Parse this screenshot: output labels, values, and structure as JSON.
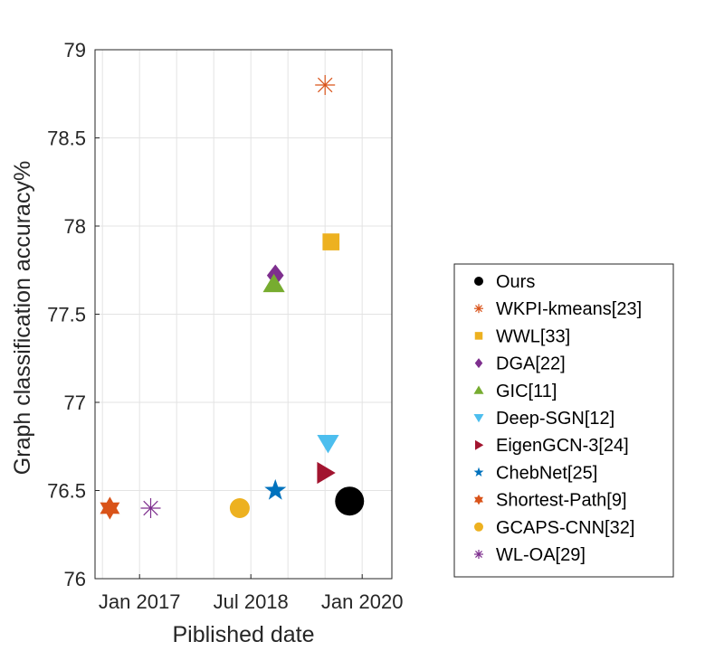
{
  "chart_data": {
    "type": "scatter",
    "title": "",
    "xlabel": "Piblished date",
    "ylabel": "Graph classification accuracy%",
    "xlim": [
      2016.4,
      2020.4
    ],
    "ylim": [
      76,
      79
    ],
    "xticks": [
      {
        "value": 2017.0,
        "label": "Jan 2017"
      },
      {
        "value": 2018.5,
        "label": "Jul 2018"
      },
      {
        "value": 2020.0,
        "label": "Jan 2020"
      }
    ],
    "yticks": [
      {
        "value": 76,
        "label": "76"
      },
      {
        "value": 76.5,
        "label": "76.5"
      },
      {
        "value": 77,
        "label": "77"
      },
      {
        "value": 77.5,
        "label": "77.5"
      },
      {
        "value": 78,
        "label": "78"
      },
      {
        "value": 78.5,
        "label": "78.5"
      },
      {
        "value": 79,
        "label": "79"
      }
    ],
    "grid": true,
    "legend_position": "right",
    "series": [
      {
        "name": "Ours",
        "marker": "circle",
        "color": "#000000",
        "x": 2019.83,
        "y": 76.44,
        "size": "large"
      },
      {
        "name": "WKPI-kmeans[23]",
        "marker": "asterisk",
        "color": "#D95319",
        "x": 2019.5,
        "y": 78.8,
        "size": "medium"
      },
      {
        "name": "WWL[33]",
        "marker": "square",
        "color": "#EDB120",
        "x": 2019.58,
        "y": 77.91,
        "size": "medium"
      },
      {
        "name": "DGA[22]",
        "marker": "diamond",
        "color": "#7E2F8E",
        "x": 2018.83,
        "y": 77.72,
        "size": "medium"
      },
      {
        "name": "GIC[11]",
        "marker": "triangle-up",
        "color": "#77AC30",
        "x": 2018.81,
        "y": 77.67,
        "size": "medium"
      },
      {
        "name": "Deep-SGN[12]",
        "marker": "triangle-down",
        "color": "#4DBEEE",
        "x": 2019.54,
        "y": 76.77,
        "size": "medium"
      },
      {
        "name": "EigenGCN-3[24]",
        "marker": "triangle-right",
        "color": "#A2142F",
        "x": 2019.5,
        "y": 76.6,
        "size": "medium"
      },
      {
        "name": "ChebNet[25]",
        "marker": "pentagram",
        "color": "#0072BD",
        "x": 2018.83,
        "y": 76.5,
        "size": "medium"
      },
      {
        "name": "Shortest-Path[9]",
        "marker": "hexagram",
        "color": "#D95319",
        "x": 2016.6,
        "y": 76.4,
        "size": "medium"
      },
      {
        "name": "GCAPS-CNN[32]",
        "marker": "circle",
        "color": "#EDB120",
        "x": 2018.35,
        "y": 76.4,
        "size": "medium"
      },
      {
        "name": "WL-OA[29]",
        "marker": "asterisk",
        "color": "#7E2F8E",
        "x": 2017.15,
        "y": 76.4,
        "size": "medium"
      }
    ]
  }
}
